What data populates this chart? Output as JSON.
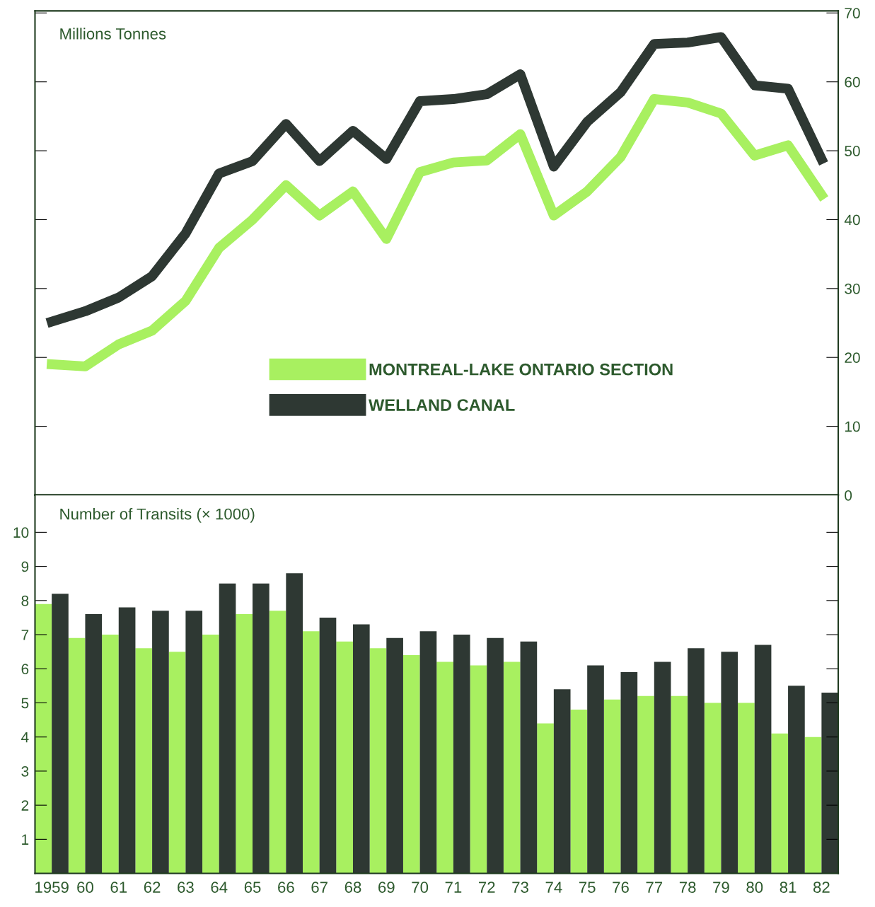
{
  "chart_data": [
    {
      "type": "line",
      "ylabel": "Millions Tonnes",
      "categories": [
        null,
        null,
        null,
        null,
        null,
        null,
        null,
        null,
        null,
        null,
        null,
        null,
        null,
        null,
        null,
        null,
        null,
        null,
        null,
        null,
        null,
        null,
        null,
        null
      ],
      "ylim": [
        0,
        70.3
      ],
      "yticks": [
        0,
        10,
        20,
        30,
        40,
        50,
        60,
        70
      ],
      "tick_labels": "y",
      "legend": "center",
      "grid": false,
      "line_style": "solid",
      "series": [
        {
          "name": "MONTREAL-LAKE ONTARIO SECTION",
          "color": "#a8f060",
          "values": [
            19.0,
            18.7,
            21.9,
            23.9,
            28.2,
            35.9,
            40.0,
            45.0,
            40.6,
            44.1,
            37.2,
            46.9,
            48.3,
            48.6,
            52.4,
            40.6,
            44.1,
            49.1,
            57.5,
            57.0,
            55.4,
            49.3,
            50.8,
            43.6
          ]
        },
        {
          "name": "WELLAND CANAL",
          "color": "#2e3833",
          "values": [
            25.2,
            26.7,
            28.7,
            31.8,
            38.0,
            46.7,
            48.5,
            53.9,
            48.5,
            52.9,
            48.8,
            57.2,
            57.5,
            58.2,
            61.1,
            47.7,
            54.2,
            58.5,
            65.5,
            65.7,
            66.5,
            59.5,
            59.0,
            48.8
          ]
        }
      ]
    },
    {
      "type": "bar",
      "ylabel": "Number of Transits (× 1000)",
      "categories": [
        "1959",
        "60",
        "61",
        "62",
        "63",
        "64",
        "65",
        "66",
        "67",
        "68",
        "69",
        "70",
        "71",
        "72",
        "73",
        "74",
        "75",
        "76",
        "77",
        "78",
        "79",
        "80",
        "81",
        "82"
      ],
      "ylim": [
        0,
        11.1
      ],
      "yticks": [
        1,
        2,
        3,
        4,
        5,
        6,
        7,
        8,
        9,
        10
      ],
      "grid": false,
      "legend": false,
      "series": [
        {
          "color": "#a8f060",
          "values": [
            7.9,
            6.9,
            7.0,
            6.6,
            6.5,
            7.0,
            7.6,
            7.7,
            7.1,
            6.8,
            6.6,
            6.4,
            6.2,
            6.1,
            6.2,
            4.4,
            4.8,
            5.1,
            5.2,
            5.2,
            5.0,
            5.0,
            4.1,
            4.0
          ]
        },
        {
          "color": "#2e3833",
          "values": [
            8.2,
            7.6,
            7.8,
            7.7,
            7.7,
            8.5,
            8.5,
            8.8,
            7.5,
            7.3,
            6.9,
            7.1,
            7.0,
            6.9,
            6.8,
            5.4,
            6.1,
            5.9,
            6.2,
            6.6,
            6.5,
            6.7,
            5.5,
            5.3
          ]
        }
      ]
    }
  ]
}
